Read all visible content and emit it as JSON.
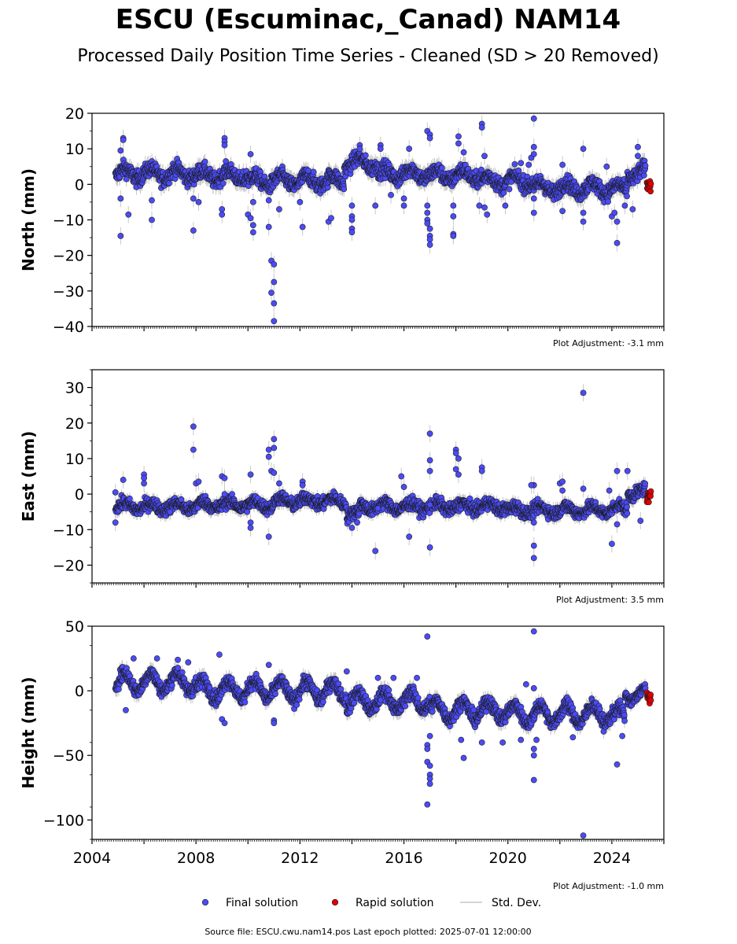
{
  "figure": {
    "title": "ESCU (Escuminac,_Canad) NAM14",
    "subtitle": "Processed Daily Position Time Series - Cleaned (SD > 20 Removed)",
    "source_line": "Source file: ESCU.cwu.nam14.pos  Last epoch plotted: 2025-07-01 12:00:00"
  },
  "legend": {
    "final": "Final solution",
    "rapid": "Rapid solution",
    "std": "Std. Dev."
  },
  "colors": {
    "final": "#4b4bf5",
    "rapid": "#e00000",
    "std": "#c8c8c8",
    "marker_edge": "#1a1a1a"
  },
  "chart_data": [
    {
      "type": "scatter",
      "id": "north",
      "ylabel": "North (mm)",
      "ylim": [
        -40,
        20
      ],
      "yticks": [
        20,
        10,
        0,
        -10,
        -20,
        -30,
        -40
      ],
      "ytick_labels": [
        "20",
        "10",
        "0",
        "−10",
        "−20",
        "−30",
        "−40"
      ],
      "xlim": [
        2004,
        2026
      ],
      "adjustment": "Plot Adjustment: -3.1 mm",
      "segments": [
        {
          "from": 2004.9,
          "to": 2008.0,
          "level": 3.0,
          "amp": 1.5,
          "noise": 2.0
        },
        {
          "from": 2008.0,
          "to": 2010.0,
          "level": 2.5,
          "amp": 1.5,
          "noise": 2.0
        },
        {
          "from": 2010.0,
          "to": 2013.7,
          "level": 1.0,
          "amp": 1.5,
          "noise": 2.0
        },
        {
          "from": 2013.7,
          "to": 2015.0,
          "level": 6.0,
          "amp": 1.5,
          "noise": 2.0
        },
        {
          "from": 2015.0,
          "to": 2017.0,
          "level": 3.0,
          "amp": 1.5,
          "noise": 2.0
        },
        {
          "from": 2017.0,
          "to": 2019.0,
          "level": 2.5,
          "amp": 1.5,
          "noise": 2.0
        },
        {
          "from": 2019.0,
          "to": 2021.0,
          "level": 1.0,
          "amp": 1.5,
          "noise": 2.0
        },
        {
          "from": 2021.0,
          "to": 2024.0,
          "level": -1.0,
          "amp": 1.5,
          "noise": 2.0
        },
        {
          "from": 2024.0,
          "to": 2024.6,
          "level": -1.5,
          "amp": 1.5,
          "noise": 2.0
        },
        {
          "from": 2024.6,
          "to": 2025.3,
          "level": 3.0,
          "amp": 1.5,
          "noise": 2.0
        }
      ],
      "outliers": [
        {
          "x": 2005.2,
          "y": 13
        },
        {
          "x": 2005.2,
          "y": 12.5
        },
        {
          "x": 2005.1,
          "y": 9.5
        },
        {
          "x": 2005.1,
          "y": -14.5
        },
        {
          "x": 2005.4,
          "y": -8.5
        },
        {
          "x": 2005.1,
          "y": -4
        },
        {
          "x": 2006.3,
          "y": -4.5
        },
        {
          "x": 2006.3,
          "y": -10
        },
        {
          "x": 2007.9,
          "y": -13
        },
        {
          "x": 2007.9,
          "y": -4
        },
        {
          "x": 2008.1,
          "y": -5
        },
        {
          "x": 2009.1,
          "y": 13
        },
        {
          "x": 2009.1,
          "y": 12
        },
        {
          "x": 2009.1,
          "y": 11
        },
        {
          "x": 2009.0,
          "y": -7
        },
        {
          "x": 2009.0,
          "y": -8.5
        },
        {
          "x": 2010.0,
          "y": -8.5
        },
        {
          "x": 2010.1,
          "y": -9.5
        },
        {
          "x": 2010.2,
          "y": -13.5
        },
        {
          "x": 2010.2,
          "y": -11.5
        },
        {
          "x": 2010.2,
          "y": -5
        },
        {
          "x": 2010.1,
          "y": 8.5
        },
        {
          "x": 2010.8,
          "y": -12
        },
        {
          "x": 2010.9,
          "y": -21.5
        },
        {
          "x": 2010.9,
          "y": -30.5
        },
        {
          "x": 2011.0,
          "y": -22.5
        },
        {
          "x": 2011.0,
          "y": -27.5
        },
        {
          "x": 2011.0,
          "y": -33.5
        },
        {
          "x": 2011.0,
          "y": -38.5
        },
        {
          "x": 2010.8,
          "y": -4.5
        },
        {
          "x": 2011.2,
          "y": -7
        },
        {
          "x": 2012.1,
          "y": -12
        },
        {
          "x": 2012.0,
          "y": -5
        },
        {
          "x": 2013.1,
          "y": -10.5
        },
        {
          "x": 2013.2,
          "y": -9.5
        },
        {
          "x": 2014.0,
          "y": -6
        },
        {
          "x": 2014.0,
          "y": -9
        },
        {
          "x": 2014.0,
          "y": -10
        },
        {
          "x": 2014.0,
          "y": -12.5
        },
        {
          "x": 2014.0,
          "y": -13.5
        },
        {
          "x": 2014.3,
          "y": 11
        },
        {
          "x": 2014.3,
          "y": 10
        },
        {
          "x": 2015.1,
          "y": 11
        },
        {
          "x": 2015.1,
          "y": 10
        },
        {
          "x": 2014.9,
          "y": -6
        },
        {
          "x": 2015.5,
          "y": -3
        },
        {
          "x": 2016.0,
          "y": -4
        },
        {
          "x": 2016.0,
          "y": -6
        },
        {
          "x": 2016.2,
          "y": 10
        },
        {
          "x": 2016.9,
          "y": 15
        },
        {
          "x": 2017.0,
          "y": 14
        },
        {
          "x": 2017.0,
          "y": 13
        },
        {
          "x": 2016.9,
          "y": -6
        },
        {
          "x": 2016.9,
          "y": -8
        },
        {
          "x": 2016.9,
          "y": -10
        },
        {
          "x": 2016.9,
          "y": -11
        },
        {
          "x": 2017.0,
          "y": -14.5
        },
        {
          "x": 2017.0,
          "y": -15.5
        },
        {
          "x": 2017.0,
          "y": -17
        },
        {
          "x": 2017.0,
          "y": -12.5
        },
        {
          "x": 2017.9,
          "y": -9
        },
        {
          "x": 2017.9,
          "y": -14
        },
        {
          "x": 2017.9,
          "y": -14.5
        },
        {
          "x": 2017.9,
          "y": -6
        },
        {
          "x": 2018.1,
          "y": 13.5
        },
        {
          "x": 2018.1,
          "y": 11.5
        },
        {
          "x": 2018.3,
          "y": 9
        },
        {
          "x": 2019.0,
          "y": 17
        },
        {
          "x": 2019.0,
          "y": 16
        },
        {
          "x": 2019.1,
          "y": -6.5
        },
        {
          "x": 2019.2,
          "y": -8.5
        },
        {
          "x": 2018.9,
          "y": -6
        },
        {
          "x": 2019.1,
          "y": 8
        },
        {
          "x": 2019.9,
          "y": -6
        },
        {
          "x": 2020.5,
          "y": 6
        },
        {
          "x": 2020.8,
          "y": 5.5
        },
        {
          "x": 2021.0,
          "y": 18.5
        },
        {
          "x": 2021.0,
          "y": 10.5
        },
        {
          "x": 2020.9,
          "y": 7.5
        },
        {
          "x": 2021.0,
          "y": 8.5
        },
        {
          "x": 2021.0,
          "y": -8
        },
        {
          "x": 2021.0,
          "y": -4
        },
        {
          "x": 2022.1,
          "y": -7.5
        },
        {
          "x": 2022.1,
          "y": 5.5
        },
        {
          "x": 2022.9,
          "y": 10
        },
        {
          "x": 2022.9,
          "y": -8
        },
        {
          "x": 2022.9,
          "y": -10.5
        },
        {
          "x": 2023.8,
          "y": 5
        },
        {
          "x": 2024.0,
          "y": -9
        },
        {
          "x": 2024.1,
          "y": -8
        },
        {
          "x": 2024.2,
          "y": -10.5
        },
        {
          "x": 2024.2,
          "y": -16.5
        },
        {
          "x": 2024.5,
          "y": -6
        },
        {
          "x": 2024.8,
          "y": -7
        },
        {
          "x": 2025.0,
          "y": 10.5
        },
        {
          "x": 2025.0,
          "y": 8
        }
      ],
      "rapid": {
        "from": 2025.35,
        "to": 2025.5,
        "level": -0.2,
        "spread": 1.2
      }
    },
    {
      "type": "scatter",
      "id": "east",
      "ylabel": "East (mm)",
      "ylim": [
        -25,
        35
      ],
      "yticks": [
        30,
        20,
        10,
        0,
        -10,
        -20
      ],
      "ytick_labels": [
        "30",
        "20",
        "10",
        "0",
        "−10",
        "−20"
      ],
      "xlim": [
        2004,
        2026
      ],
      "adjustment": "Plot Adjustment: 3.5 mm",
      "segments": [
        {
          "from": 2004.9,
          "to": 2008.0,
          "level": -3.5,
          "amp": 1.0,
          "noise": 1.6
        },
        {
          "from": 2008.0,
          "to": 2011.0,
          "level": -3.0,
          "amp": 1.0,
          "noise": 1.6
        },
        {
          "from": 2011.0,
          "to": 2013.8,
          "level": -2.0,
          "amp": 1.0,
          "noise": 1.6
        },
        {
          "from": 2013.8,
          "to": 2014.3,
          "level": -5.5,
          "amp": 1.0,
          "noise": 1.6
        },
        {
          "from": 2014.3,
          "to": 2017.0,
          "level": -3.5,
          "amp": 1.0,
          "noise": 1.6
        },
        {
          "from": 2017.0,
          "to": 2020.0,
          "level": -3.5,
          "amp": 1.0,
          "noise": 1.6
        },
        {
          "from": 2020.0,
          "to": 2024.0,
          "level": -4.5,
          "amp": 1.0,
          "noise": 1.6
        },
        {
          "from": 2024.0,
          "to": 2024.6,
          "level": -4.0,
          "amp": 1.0,
          "noise": 1.6
        },
        {
          "from": 2024.6,
          "to": 2025.3,
          "level": 0.5,
          "amp": 1.0,
          "noise": 1.6
        }
      ],
      "outliers": [
        {
          "x": 2004.9,
          "y": 0.5
        },
        {
          "x": 2004.9,
          "y": -8
        },
        {
          "x": 2005.2,
          "y": 4
        },
        {
          "x": 2006.0,
          "y": 5.5
        },
        {
          "x": 2006.0,
          "y": 4.5
        },
        {
          "x": 2006.0,
          "y": 3
        },
        {
          "x": 2007.0,
          "y": -5
        },
        {
          "x": 2007.9,
          "y": 19
        },
        {
          "x": 2007.9,
          "y": 12.5
        },
        {
          "x": 2008.0,
          "y": 3
        },
        {
          "x": 2008.1,
          "y": 3.5
        },
        {
          "x": 2009.0,
          "y": 5
        },
        {
          "x": 2009.1,
          "y": 4.5
        },
        {
          "x": 2009.1,
          "y": 0
        },
        {
          "x": 2010.1,
          "y": 5.5
        },
        {
          "x": 2010.1,
          "y": -8
        },
        {
          "x": 2010.1,
          "y": -9.5
        },
        {
          "x": 2010.8,
          "y": 12.5
        },
        {
          "x": 2010.8,
          "y": 10.5
        },
        {
          "x": 2010.9,
          "y": 6.5
        },
        {
          "x": 2011.0,
          "y": 15.5
        },
        {
          "x": 2011.0,
          "y": 13
        },
        {
          "x": 2011.0,
          "y": 6
        },
        {
          "x": 2010.8,
          "y": -12
        },
        {
          "x": 2011.2,
          "y": 3
        },
        {
          "x": 2012.1,
          "y": 3.5
        },
        {
          "x": 2012.1,
          "y": 2.5
        },
        {
          "x": 2014.0,
          "y": -9.5
        },
        {
          "x": 2014.2,
          "y": -8
        },
        {
          "x": 2014.9,
          "y": -16
        },
        {
          "x": 2015.0,
          "y": -4
        },
        {
          "x": 2015.9,
          "y": 5
        },
        {
          "x": 2016.2,
          "y": -12
        },
        {
          "x": 2016.0,
          "y": 2
        },
        {
          "x": 2017.0,
          "y": 17
        },
        {
          "x": 2017.0,
          "y": 9.5
        },
        {
          "x": 2017.0,
          "y": 6.5
        },
        {
          "x": 2017.0,
          "y": -15
        },
        {
          "x": 2017.0,
          "y": -3
        },
        {
          "x": 2018.0,
          "y": 12.5
        },
        {
          "x": 2018.0,
          "y": 11.5
        },
        {
          "x": 2018.1,
          "y": 10
        },
        {
          "x": 2018.0,
          "y": 7
        },
        {
          "x": 2018.1,
          "y": 5.5
        },
        {
          "x": 2019.0,
          "y": 7.5
        },
        {
          "x": 2019.0,
          "y": 6.5
        },
        {
          "x": 2021.0,
          "y": 2.5
        },
        {
          "x": 2020.9,
          "y": 2.5
        },
        {
          "x": 2021.0,
          "y": -14.5
        },
        {
          "x": 2021.0,
          "y": -18
        },
        {
          "x": 2021.0,
          "y": -8
        },
        {
          "x": 2022.0,
          "y": 3
        },
        {
          "x": 2022.1,
          "y": 3.5
        },
        {
          "x": 2022.1,
          "y": 1
        },
        {
          "x": 2022.9,
          "y": 28.5
        },
        {
          "x": 2022.9,
          "y": 1.5
        },
        {
          "x": 2023.9,
          "y": 1
        },
        {
          "x": 2024.0,
          "y": -14
        },
        {
          "x": 2024.2,
          "y": 6.5
        },
        {
          "x": 2024.2,
          "y": -8.5
        },
        {
          "x": 2024.6,
          "y": 6.5
        },
        {
          "x": 2025.1,
          "y": -7.5
        }
      ],
      "rapid": {
        "from": 2025.35,
        "to": 2025.5,
        "level": -1.0,
        "spread": 1.3
      }
    },
    {
      "type": "scatter",
      "id": "height",
      "ylabel": "Height (mm)",
      "ylim": [
        -115,
        50
      ],
      "yticks": [
        50,
        0,
        -50,
        -100
      ],
      "ytick_labels": [
        "50",
        "0",
        "−50",
        "−100"
      ],
      "xlim": [
        2004,
        2026
      ],
      "xticks": [
        2004,
        2008,
        2012,
        2016,
        2020,
        2024
      ],
      "xtick_labels": [
        "2004",
        "2008",
        "2012",
        "2016",
        "2020",
        "2024"
      ],
      "adjustment": "Plot Adjustment: -1.0 mm",
      "segments": [
        {
          "from": 2004.9,
          "to": 2008.0,
          "level": 7.0,
          "amp": 7.0,
          "noise": 5.0
        },
        {
          "from": 2008.0,
          "to": 2011.0,
          "level": 1.0,
          "amp": 7.0,
          "noise": 5.0
        },
        {
          "from": 2011.0,
          "to": 2013.8,
          "level": 0.0,
          "amp": 7.0,
          "noise": 5.0
        },
        {
          "from": 2013.8,
          "to": 2017.0,
          "level": -8.0,
          "amp": 7.0,
          "noise": 5.0
        },
        {
          "from": 2017.0,
          "to": 2020.0,
          "level": -15.0,
          "amp": 7.0,
          "noise": 5.0
        },
        {
          "from": 2020.0,
          "to": 2024.0,
          "level": -18.0,
          "amp": 7.0,
          "noise": 5.0
        },
        {
          "from": 2024.0,
          "to": 2024.5,
          "level": -20.0,
          "amp": 7.0,
          "noise": 5.0
        },
        {
          "from": 2024.5,
          "to": 2025.3,
          "level": -3.0,
          "amp": 5.0,
          "noise": 4.0
        }
      ],
      "outliers": [
        {
          "x": 2005.3,
          "y": -15
        },
        {
          "x": 2005.6,
          "y": 25
        },
        {
          "x": 2006.5,
          "y": 25
        },
        {
          "x": 2007.3,
          "y": 24
        },
        {
          "x": 2007.7,
          "y": 22
        },
        {
          "x": 2008.9,
          "y": 28
        },
        {
          "x": 2009.0,
          "y": -22
        },
        {
          "x": 2009.1,
          "y": -25
        },
        {
          "x": 2010.8,
          "y": 20
        },
        {
          "x": 2011.0,
          "y": -23
        },
        {
          "x": 2011.0,
          "y": -25
        },
        {
          "x": 2013.8,
          "y": 15
        },
        {
          "x": 2015.0,
          "y": 10
        },
        {
          "x": 2015.6,
          "y": 10
        },
        {
          "x": 2016.5,
          "y": 10
        },
        {
          "x": 2016.9,
          "y": 42
        },
        {
          "x": 2016.9,
          "y": -42
        },
        {
          "x": 2016.9,
          "y": -45
        },
        {
          "x": 2016.9,
          "y": -55
        },
        {
          "x": 2017.0,
          "y": -58
        },
        {
          "x": 2017.0,
          "y": -65
        },
        {
          "x": 2017.0,
          "y": -68
        },
        {
          "x": 2017.0,
          "y": -72
        },
        {
          "x": 2016.9,
          "y": -88
        },
        {
          "x": 2017.0,
          "y": -35
        },
        {
          "x": 2018.3,
          "y": -52
        },
        {
          "x": 2018.2,
          "y": -38
        },
        {
          "x": 2019.0,
          "y": -40
        },
        {
          "x": 2019.8,
          "y": -40
        },
        {
          "x": 2020.5,
          "y": -38
        },
        {
          "x": 2020.7,
          "y": 5
        },
        {
          "x": 2021.0,
          "y": 46
        },
        {
          "x": 2021.0,
          "y": 2
        },
        {
          "x": 2021.0,
          "y": -45
        },
        {
          "x": 2021.0,
          "y": -50
        },
        {
          "x": 2021.0,
          "y": -69
        },
        {
          "x": 2021.1,
          "y": -38
        },
        {
          "x": 2022.5,
          "y": -36
        },
        {
          "x": 2022.9,
          "y": -112
        },
        {
          "x": 2024.2,
          "y": -57
        },
        {
          "x": 2024.4,
          "y": -35
        }
      ],
      "rapid": {
        "from": 2025.35,
        "to": 2025.5,
        "level": -5.0,
        "spread": 5.0
      }
    }
  ]
}
